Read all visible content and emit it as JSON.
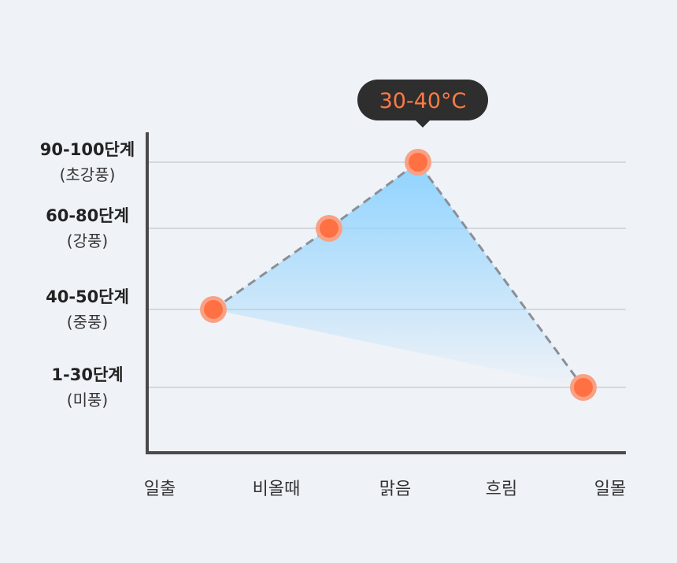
{
  "chart_data": {
    "type": "line",
    "categories": [
      "일출",
      "비올때",
      "맑음",
      "흐림",
      "일몰"
    ],
    "levels": [
      {
        "name": "1-30단계",
        "sub": "(미풍)"
      },
      {
        "name": "40-50단계",
        "sub": "(중풍)"
      },
      {
        "name": "60-80단계",
        "sub": "(강풍)"
      },
      {
        "name": "90-100단계",
        "sub": "(초강풍)"
      }
    ],
    "points": [
      {
        "category": "일출",
        "level": "40-50단계"
      },
      {
        "category": "비올때",
        "level": "60-80단계"
      },
      {
        "category": "맑음",
        "level": "90-100단계"
      },
      {
        "category": "일몰",
        "level": "1-30단계"
      }
    ],
    "annotation": {
      "text": "30-40°C",
      "category": "맑음"
    },
    "grid": true,
    "colors": {
      "point": "#ff7043",
      "point_ring": "#f9a184",
      "line": "#8a8f96",
      "fill": "#8fd3ff",
      "tooltip_bg": "#2e2e2e",
      "tooltip_text": "#ff7a45",
      "axis": "#4a4a4a",
      "grid": "#b9bcc1"
    }
  }
}
